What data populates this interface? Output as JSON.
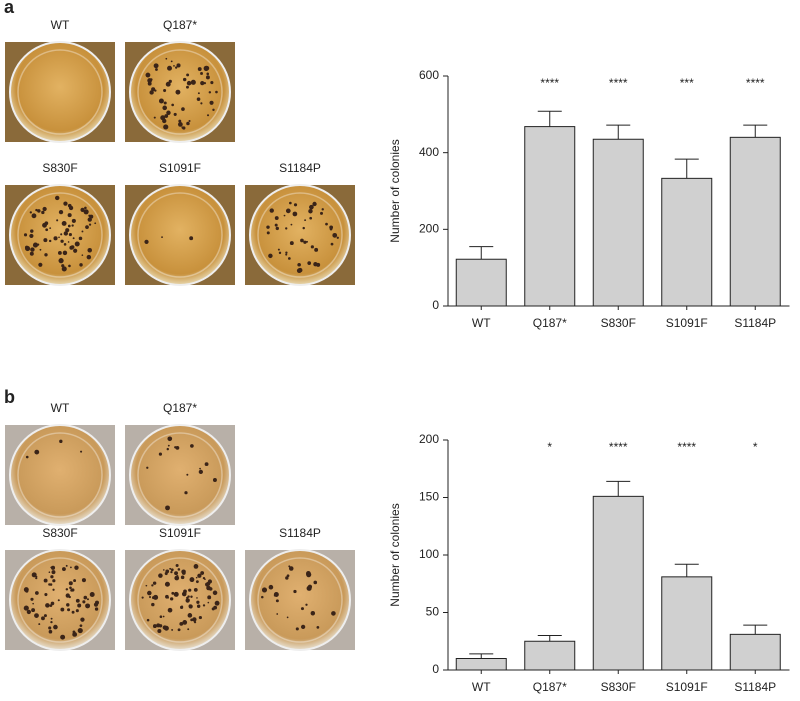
{
  "panel_labels": [
    "a",
    "b"
  ],
  "photos": [
    [
      "WT",
      "Q187*",
      "S830F",
      "S1091F",
      "S1184P"
    ],
    [
      "WT",
      "Q187*",
      "S830F",
      "S1091F",
      "S1184P"
    ]
  ],
  "chart_data": [
    {
      "type": "bar",
      "ylabel": "Number of colonies",
      "categories": [
        "WT",
        "Q187*",
        "S830F",
        "S1091F",
        "S1184P"
      ],
      "values": [
        122,
        468,
        435,
        333,
        440
      ],
      "errors": [
        33,
        40,
        37,
        50,
        32
      ],
      "annotations": [
        null,
        "****",
        "****",
        "***",
        "****"
      ],
      "color": "#d0d0d0",
      "ylim": [
        0,
        600
      ],
      "yticks": [
        0,
        200,
        400,
        600
      ]
    },
    {
      "type": "bar",
      "ylabel": "Number of colonies",
      "categories": [
        "WT",
        "Q187*",
        "S830F",
        "S1091F",
        "S1184P"
      ],
      "values": [
        10,
        25,
        151,
        81,
        31
      ],
      "errors": [
        4,
        5,
        13,
        11,
        8
      ],
      "annotations": [
        null,
        "*",
        "****",
        "****",
        "*"
      ],
      "color": "#d0d0d0",
      "ylim": [
        0,
        200
      ],
      "yticks": [
        0,
        50,
        100,
        150,
        200
      ]
    }
  ]
}
